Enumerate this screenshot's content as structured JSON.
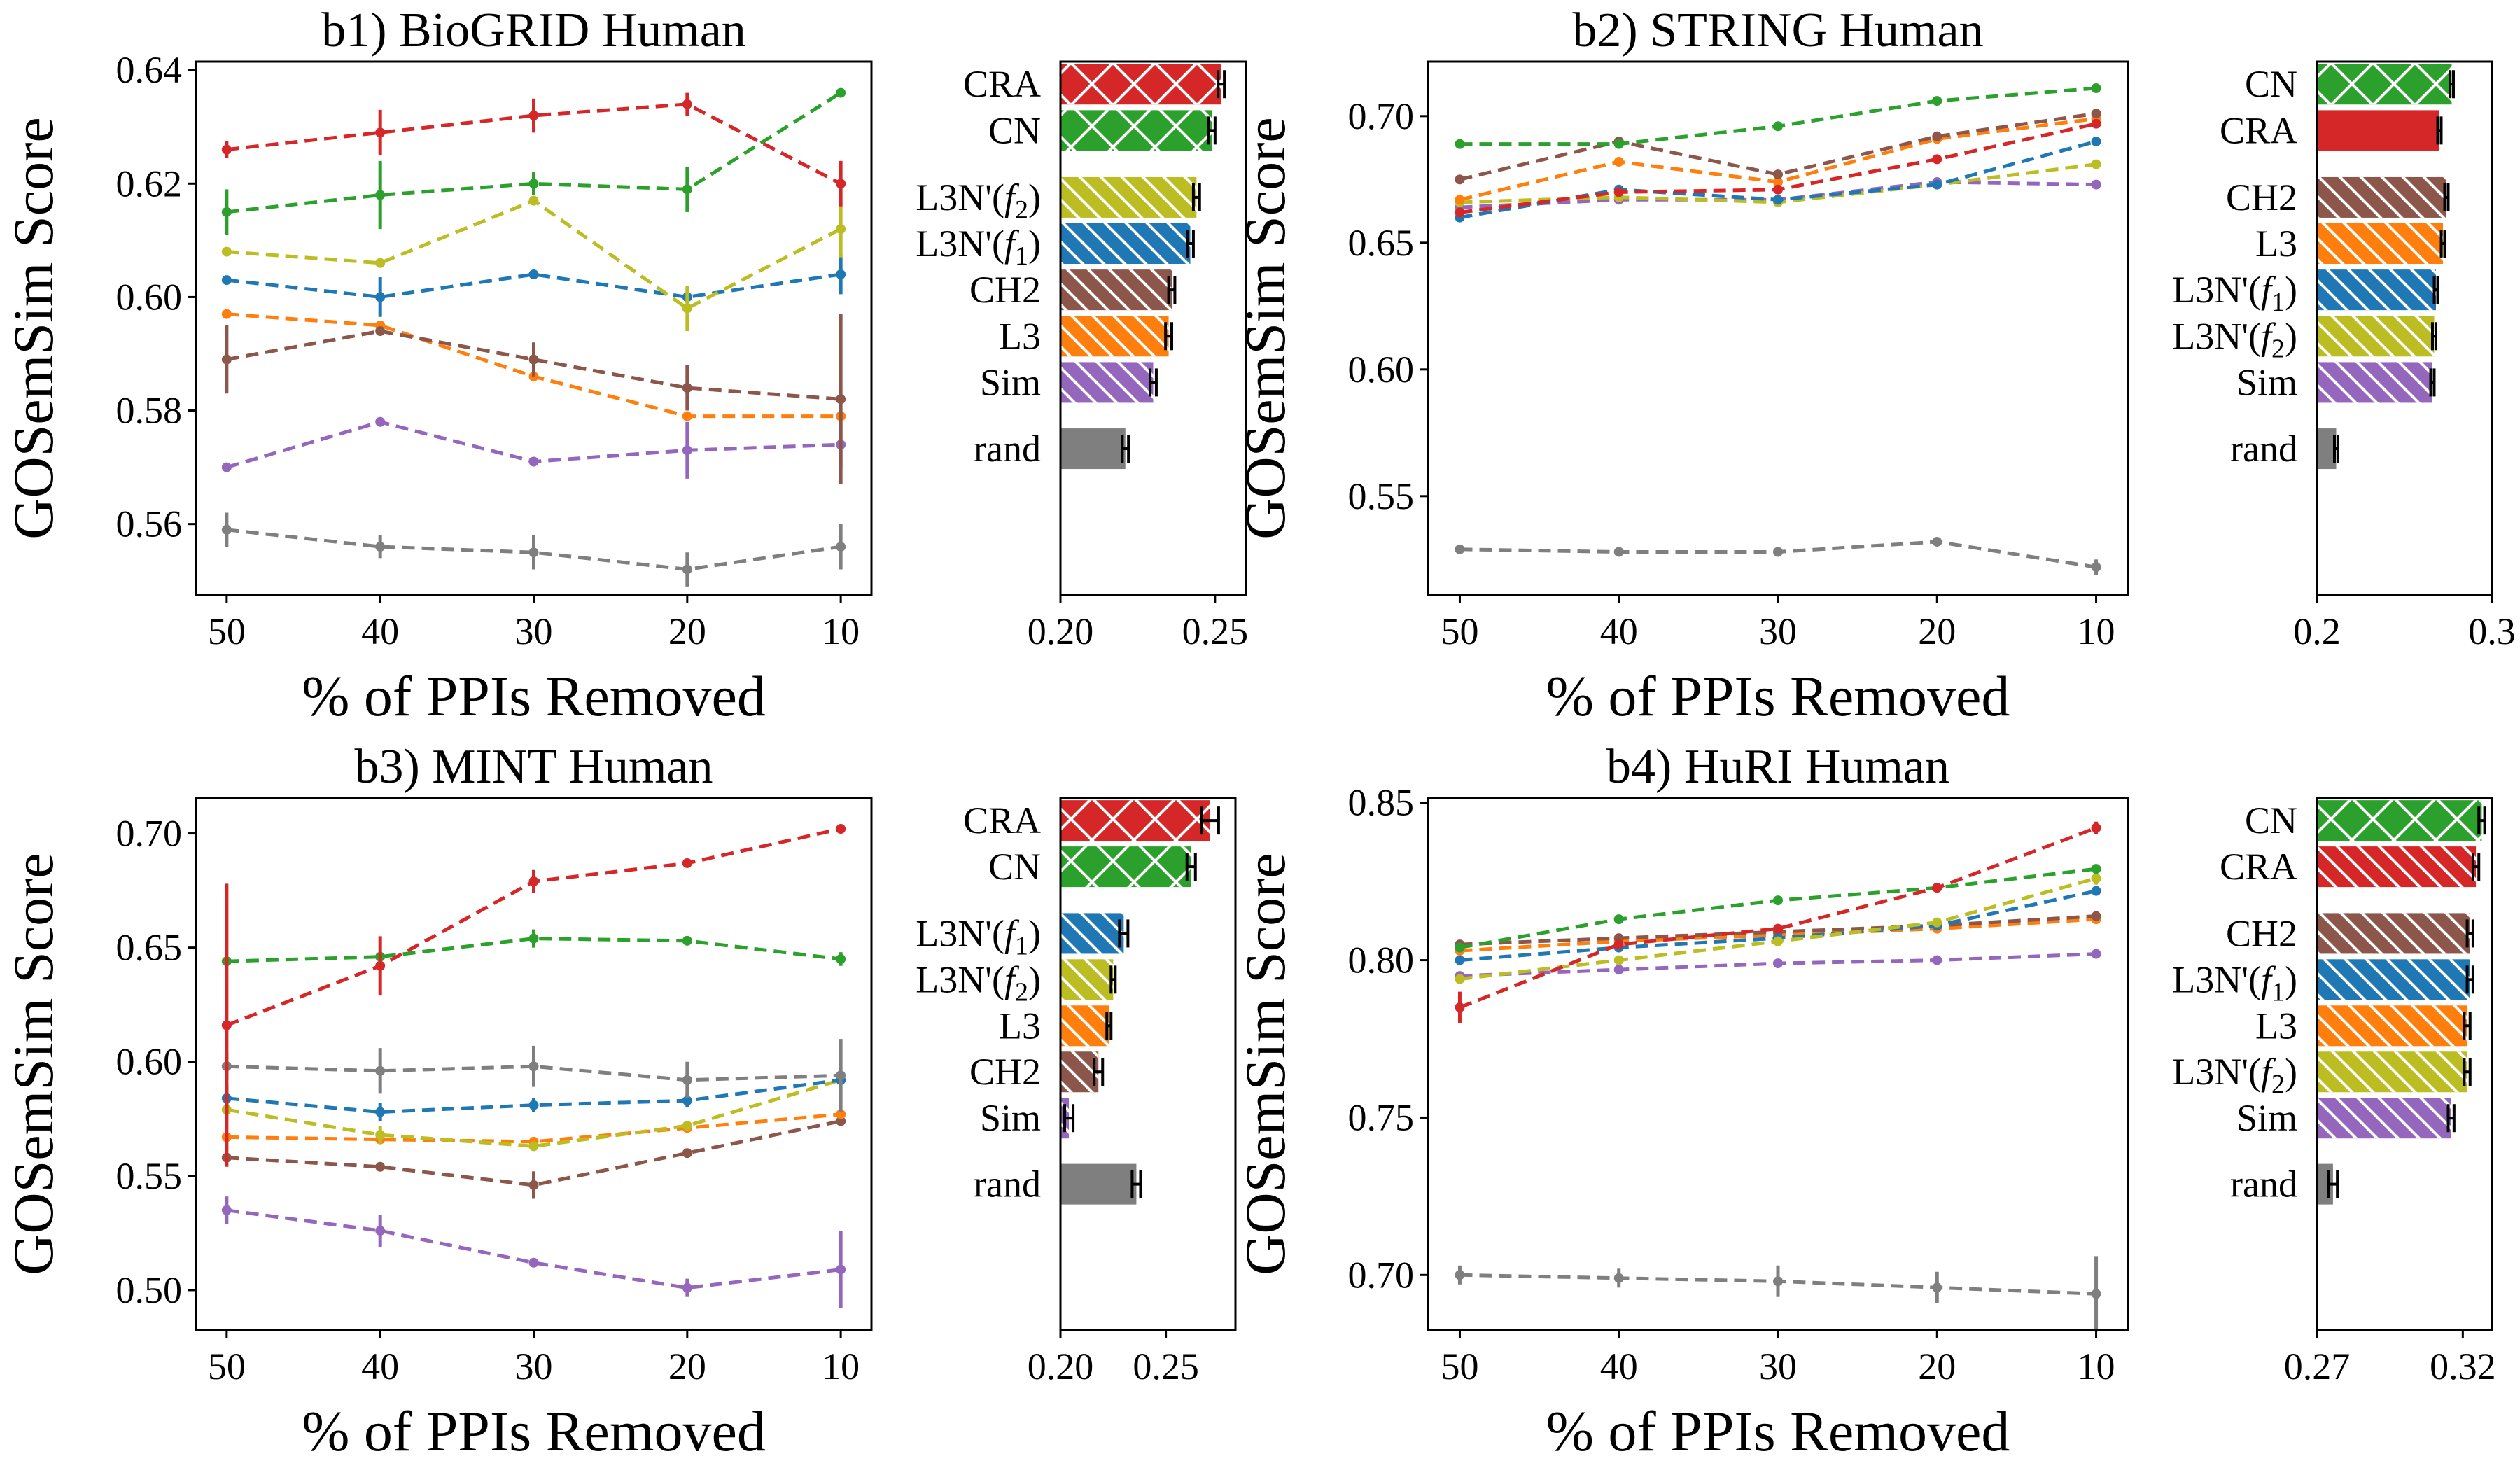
{
  "chart_data": [
    {
      "type": "line",
      "title": "b1) BioGRID Human",
      "xlabel": "% of PPIs Removed",
      "ylabel": "GOSemSim Score",
      "x": [
        50,
        40,
        30,
        20,
        10
      ],
      "xlim": [
        52,
        8
      ],
      "ylim": [
        0.5475,
        0.6415
      ],
      "yticks": [
        0.56,
        0.58,
        0.6,
        0.62,
        0.64
      ],
      "ytick_labels": [
        "0.56",
        "0.58",
        "0.60",
        "0.62",
        "0.64"
      ],
      "grid": false,
      "series": [
        {
          "method": "CRA",
          "color": "#d62728",
          "values": [
            0.626,
            0.629,
            0.632,
            0.634,
            0.62
          ],
          "errors": [
            0.0015,
            0.004,
            0.003,
            0.002,
            0.004
          ]
        },
        {
          "method": "CN",
          "color": "#2ca02c",
          "values": [
            0.615,
            0.618,
            0.62,
            0.619,
            0.636
          ],
          "errors": [
            0.004,
            0.006,
            0.002,
            0.004,
            0.0006
          ]
        },
        {
          "method": "L3N'(f2)",
          "color": "#bcbd22",
          "values": [
            0.608,
            0.606,
            0.617,
            0.598,
            0.612
          ],
          "errors": [
            0.0008,
            0.0008,
            0.0008,
            0.004,
            0.005
          ]
        },
        {
          "method": "L3N'(f1)",
          "color": "#1f77b4",
          "values": [
            0.603,
            0.6,
            0.604,
            0.6,
            0.604
          ],
          "errors": [
            0.0008,
            0.0035,
            0.0006,
            0.0006,
            0.0035
          ]
        },
        {
          "method": "CH2",
          "color": "#8c564b",
          "values": [
            0.589,
            0.594,
            0.589,
            0.584,
            0.582
          ],
          "errors": [
            0.006,
            0.0008,
            0.003,
            0.004,
            0.015
          ]
        },
        {
          "method": "L3",
          "color": "#ff7f0e",
          "values": [
            0.597,
            0.595,
            0.586,
            0.579,
            0.579
          ],
          "errors": [
            0.0006,
            0.0006,
            0.0006,
            0.0006,
            0.0006
          ]
        },
        {
          "method": "Sim",
          "color": "#9467bd",
          "values": [
            0.57,
            0.578,
            0.571,
            0.573,
            0.574
          ],
          "errors": [
            0.0006,
            0.0008,
            0.0006,
            0.005,
            0.004
          ]
        },
        {
          "method": "rand",
          "color": "#7f7f7f",
          "values": [
            0.559,
            0.556,
            0.555,
            0.552,
            0.556
          ],
          "errors": [
            0.003,
            0.002,
            0.003,
            0.003,
            0.004
          ]
        }
      ]
    },
    {
      "type": "bar",
      "orientation": "horizontal",
      "categories": [
        "CRA",
        "CN",
        "L3N'(f2)",
        "L3N'(f1)",
        "CH2",
        "L3",
        "Sim",
        "rand"
      ],
      "category_labels": [
        "CRA",
        "CN",
        "L3N'(",
        "L3N'(",
        "CH2",
        "L3",
        "Sim",
        "rand"
      ],
      "category_subs": [
        "",
        "",
        "2",
        "1",
        "",
        "",
        "",
        ""
      ],
      "values": [
        0.252,
        0.249,
        0.244,
        0.242,
        0.236,
        0.235,
        0.23,
        0.221
      ],
      "errors": [
        0.001,
        0.001,
        0.001,
        0.001,
        0.001,
        0.001,
        0.001,
        0.001
      ],
      "colors": [
        "#d62728",
        "#2ca02c",
        "#bcbd22",
        "#1f77b4",
        "#8c564b",
        "#ff7f0e",
        "#9467bd",
        "#7f7f7f"
      ],
      "hatch": [
        "x",
        "x",
        "\\",
        "\\",
        "\\",
        "\\",
        "\\",
        ""
      ],
      "xlim": [
        0.2,
        0.26
      ],
      "xticks": [
        0.2,
        0.25
      ],
      "xtick_labels": [
        "0.20",
        "0.25"
      ]
    },
    {
      "type": "line",
      "title": "b2) STRING Human",
      "xlabel": "% of PPIs Removed",
      "ylabel": "GOSemSim Score",
      "x": [
        50,
        40,
        30,
        20,
        10
      ],
      "xlim": [
        52,
        8
      ],
      "ylim": [
        0.511,
        0.7215
      ],
      "yticks": [
        0.55,
        0.6,
        0.65,
        0.7
      ],
      "ytick_labels": [
        "0.55",
        "0.60",
        "0.65",
        "0.70"
      ],
      "grid": false,
      "series": [
        {
          "method": "CN",
          "color": "#2ca02c",
          "values": [
            0.689,
            0.689,
            0.696,
            0.706,
            0.711
          ],
          "errors": [
            0.0005,
            0.0005,
            0.0005,
            0.0005,
            0.0005
          ]
        },
        {
          "method": "CRA",
          "color": "#d62728",
          "values": [
            0.662,
            0.67,
            0.671,
            0.683,
            0.697
          ],
          "errors": [
            0.0005,
            0.0005,
            0.0005,
            0.0005,
            0.0005
          ]
        },
        {
          "method": "CH2",
          "color": "#8c564b",
          "values": [
            0.675,
            0.69,
            0.677,
            0.692,
            0.701
          ],
          "errors": [
            0.0005,
            0.0005,
            0.0005,
            0.0005,
            0.0005
          ]
        },
        {
          "method": "L3",
          "color": "#ff7f0e",
          "values": [
            0.667,
            0.682,
            0.674,
            0.691,
            0.699
          ],
          "errors": [
            0.0005,
            0.0005,
            0.0005,
            0.0005,
            0.0005
          ]
        },
        {
          "method": "L3N'(f1)",
          "color": "#1f77b4",
          "values": [
            0.66,
            0.671,
            0.667,
            0.673,
            0.69
          ],
          "errors": [
            0.0005,
            0.0005,
            0.0005,
            0.0005,
            0.0005
          ]
        },
        {
          "method": "L3N'(f2)",
          "color": "#bcbd22",
          "values": [
            0.666,
            0.668,
            0.666,
            0.673,
            0.681
          ],
          "errors": [
            0.0005,
            0.0005,
            0.0005,
            0.0005,
            0.0005
          ]
        },
        {
          "method": "Sim",
          "color": "#9467bd",
          "values": [
            0.664,
            0.667,
            0.667,
            0.674,
            0.673
          ],
          "errors": [
            0.0005,
            0.0005,
            0.0005,
            0.0005,
            0.0005
          ]
        },
        {
          "method": "rand",
          "color": "#7f7f7f",
          "values": [
            0.529,
            0.528,
            0.528,
            0.532,
            0.522
          ],
          "errors": [
            0.0008,
            0.0008,
            0.0015,
            0.0008,
            0.003
          ]
        }
      ]
    },
    {
      "type": "bar",
      "orientation": "horizontal",
      "categories": [
        "CN",
        "CRA",
        "CH2",
        "L3",
        "L3N'(f1)",
        "L3N'(f2)",
        "Sim",
        "rand"
      ],
      "category_labels": [
        "CN",
        "CRA",
        "CH2",
        "L3",
        "L3N'(",
        "L3N'(",
        "Sim",
        "rand"
      ],
      "category_subs": [
        "",
        "",
        "",
        "",
        "1",
        "2",
        "",
        ""
      ],
      "values": [
        0.277,
        0.27,
        0.274,
        0.272,
        0.268,
        0.267,
        0.266,
        0.211
      ],
      "errors": [
        0.001,
        0.001,
        0.001,
        0.001,
        0.001,
        0.001,
        0.001,
        0.001
      ],
      "colors": [
        "#2ca02c",
        "#d62728",
        "#8c564b",
        "#ff7f0e",
        "#1f77b4",
        "#bcbd22",
        "#9467bd",
        "#7f7f7f"
      ],
      "hatch": [
        "x",
        "",
        "\\",
        "\\",
        "\\",
        "\\",
        "\\",
        ""
      ],
      "xlim": [
        0.2,
        0.3
      ],
      "xticks": [
        0.2,
        0.3
      ],
      "xtick_labels": [
        "0.2",
        "0.3"
      ]
    },
    {
      "type": "line",
      "title": "b3) MINT Human",
      "xlabel": "% of PPIs Removed",
      "ylabel": "GOSemSim Score",
      "x": [
        50,
        40,
        30,
        20,
        10
      ],
      "xlim": [
        52,
        8
      ],
      "ylim": [
        0.4825,
        0.7155
      ],
      "yticks": [
        0.5,
        0.55,
        0.6,
        0.65,
        0.7
      ],
      "ytick_labels": [
        "0.50",
        "0.55",
        "0.60",
        "0.65",
        "0.70"
      ],
      "grid": false,
      "series": [
        {
          "method": "CRA",
          "color": "#d62728",
          "values": [
            0.616,
            0.642,
            0.679,
            0.687,
            0.702
          ],
          "errors": [
            0.062,
            0.013,
            0.005,
            0.002,
            0.002
          ]
        },
        {
          "method": "CN",
          "color": "#2ca02c",
          "values": [
            0.644,
            0.646,
            0.654,
            0.653,
            0.645
          ],
          "errors": [
            0.001,
            0.001,
            0.004,
            0.002,
            0.003
          ]
        },
        {
          "method": "rand",
          "color": "#7f7f7f",
          "values": [
            0.598,
            0.596,
            0.598,
            0.592,
            0.594
          ],
          "errors": [
            0.006,
            0.01,
            0.009,
            0.008,
            0.016
          ]
        },
        {
          "method": "L3N'(f1)",
          "color": "#1f77b4",
          "values": [
            0.584,
            0.578,
            0.581,
            0.583,
            0.592
          ],
          "errors": [
            0.006,
            0.004,
            0.003,
            0.003,
            0.001
          ]
        },
        {
          "method": "L3N'(f2)",
          "color": "#bcbd22",
          "values": [
            0.579,
            0.568,
            0.563,
            0.572,
            0.592
          ],
          "errors": [
            0.004,
            0.004,
            0.002,
            0.002,
            0.002
          ]
        },
        {
          "method": "L3",
          "color": "#ff7f0e",
          "values": [
            0.567,
            0.566,
            0.565,
            0.571,
            0.577
          ],
          "errors": [
            0.001,
            0.001,
            0.001,
            0.001,
            0.002
          ]
        },
        {
          "method": "CH2",
          "color": "#8c564b",
          "values": [
            0.558,
            0.554,
            0.546,
            0.56,
            0.574
          ],
          "errors": [
            0.002,
            0.002,
            0.006,
            0.002,
            0.001
          ]
        },
        {
          "method": "Sim",
          "color": "#9467bd",
          "values": [
            0.535,
            0.526,
            0.512,
            0.501,
            0.509
          ],
          "errors": [
            0.006,
            0.007,
            0.001,
            0.004,
            0.017
          ]
        }
      ]
    },
    {
      "type": "bar",
      "orientation": "horizontal",
      "categories": [
        "CRA",
        "CN",
        "L3N'(f1)",
        "L3N'(f2)",
        "L3",
        "CH2",
        "Sim",
        "rand"
      ],
      "category_labels": [
        "CRA",
        "CN",
        "L3N'(",
        "L3N'(",
        "L3",
        "CH2",
        "Sim",
        "rand"
      ],
      "category_subs": [
        "",
        "",
        "1",
        "2",
        "",
        "",
        "",
        ""
      ],
      "values": [
        0.271,
        0.262,
        0.23,
        0.225,
        0.223,
        0.218,
        0.204,
        0.236
      ],
      "errors": [
        0.004,
        0.002,
        0.002,
        0.001,
        0.001,
        0.002,
        0.002,
        0.002
      ],
      "colors": [
        "#d62728",
        "#2ca02c",
        "#1f77b4",
        "#bcbd22",
        "#ff7f0e",
        "#8c564b",
        "#9467bd",
        "#7f7f7f"
      ],
      "hatch": [
        "x",
        "x",
        "\\",
        "\\",
        "\\",
        "\\",
        "\\",
        ""
      ],
      "xlim": [
        0.2,
        0.283
      ],
      "xticks": [
        0.2,
        0.25
      ],
      "xtick_labels": [
        "0.20",
        "0.25"
      ]
    },
    {
      "type": "line",
      "title": "b4) HuRI Human",
      "xlabel": "% of PPIs Removed",
      "ylabel": "GOSemSim Score",
      "x": [
        50,
        40,
        30,
        20,
        10
      ],
      "xlim": [
        52,
        8
      ],
      "ylim": [
        0.6825,
        0.8515
      ],
      "yticks": [
        0.7,
        0.75,
        0.8,
        0.85
      ],
      "ytick_labels": [
        "0.70",
        "0.75",
        "0.80",
        "0.85"
      ],
      "grid": false,
      "series": [
        {
          "method": "CRA",
          "color": "#d62728",
          "values": [
            0.785,
            0.805,
            0.81,
            0.823,
            0.842
          ],
          "errors": [
            0.005,
            0.001,
            0.001,
            0.001,
            0.002
          ]
        },
        {
          "method": "CN",
          "color": "#2ca02c",
          "values": [
            0.804,
            0.813,
            0.819,
            0.823,
            0.829
          ],
          "errors": [
            0.001,
            0.001,
            0.001,
            0.001,
            0.001
          ]
        },
        {
          "method": "L3N'(f2)",
          "color": "#bcbd22",
          "values": [
            0.794,
            0.8,
            0.806,
            0.812,
            0.826
          ],
          "errors": [
            0.001,
            0.001,
            0.001,
            0.001,
            0.002
          ]
        },
        {
          "method": "L3N'(f1)",
          "color": "#1f77b4",
          "values": [
            0.8,
            0.804,
            0.807,
            0.811,
            0.822
          ],
          "errors": [
            0.001,
            0.001,
            0.001,
            0.001,
            0.001
          ]
        },
        {
          "method": "CH2",
          "color": "#8c564b",
          "values": [
            0.805,
            0.807,
            0.809,
            0.811,
            0.814
          ],
          "errors": [
            0.001,
            0.001,
            0.001,
            0.001,
            0.001
          ]
        },
        {
          "method": "L3",
          "color": "#ff7f0e",
          "values": [
            0.803,
            0.806,
            0.808,
            0.81,
            0.813
          ],
          "errors": [
            0.001,
            0.001,
            0.001,
            0.001,
            0.001
          ]
        },
        {
          "method": "Sim",
          "color": "#9467bd",
          "values": [
            0.795,
            0.797,
            0.799,
            0.8,
            0.802
          ],
          "errors": [
            0.001,
            0.001,
            0.001,
            0.001,
            0.001
          ]
        },
        {
          "method": "rand",
          "color": "#7f7f7f",
          "values": [
            0.7,
            0.699,
            0.698,
            0.696,
            0.694
          ],
          "errors": [
            0.003,
            0.003,
            0.005,
            0.005,
            0.012
          ]
        }
      ]
    },
    {
      "type": "bar",
      "orientation": "horizontal",
      "categories": [
        "CN",
        "CRA",
        "CH2",
        "L3N'(f1)",
        "L3",
        "L3N'(f2)",
        "Sim",
        "rand"
      ],
      "category_labels": [
        "CN",
        "CRA",
        "CH2",
        "L3N'(",
        "L3",
        "L3N'(",
        "Sim",
        "rand"
      ],
      "category_subs": [
        "",
        "",
        "",
        "1",
        "",
        "2",
        "",
        ""
      ],
      "values": [
        0.3265,
        0.3245,
        0.3225,
        0.3225,
        0.3215,
        0.3215,
        0.316,
        0.2755
      ],
      "errors": [
        0.001,
        0.001,
        0.001,
        0.001,
        0.001,
        0.001,
        0.001,
        0.0015
      ],
      "colors": [
        "#2ca02c",
        "#d62728",
        "#8c564b",
        "#1f77b4",
        "#ff7f0e",
        "#bcbd22",
        "#9467bd",
        "#7f7f7f"
      ],
      "hatch": [
        "x",
        "\\",
        "\\",
        "\\",
        "\\",
        "\\",
        "\\",
        ""
      ],
      "xlim": [
        0.27,
        0.33
      ],
      "xticks": [
        0.27,
        0.32
      ],
      "xtick_labels": [
        "0.27",
        "0.32"
      ]
    }
  ]
}
